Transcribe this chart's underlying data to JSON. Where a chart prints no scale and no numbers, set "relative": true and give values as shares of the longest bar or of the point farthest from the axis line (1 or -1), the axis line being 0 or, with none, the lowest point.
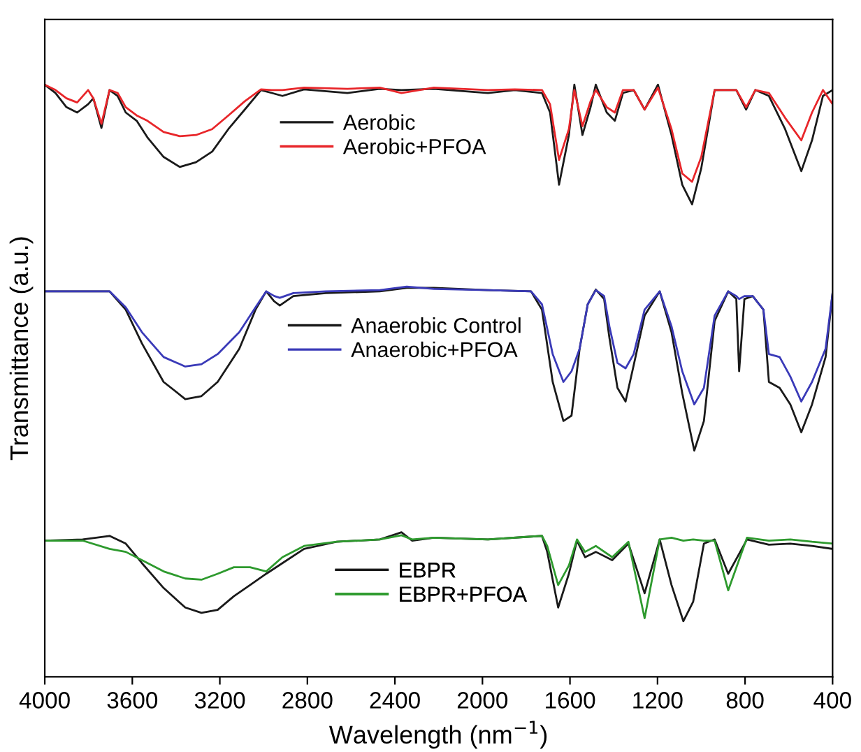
{
  "chart_data": {
    "type": "line",
    "relative": true,
    "xlabel": "Wavelength (nm$^{−1}$)",
    "ylabel": "Transmittance (a.u.)",
    "xlim": [
      4000,
      400
    ],
    "xticks": [
      4000,
      3600,
      3200,
      2800,
      2400,
      2000,
      1600,
      1200,
      800,
      400
    ],
    "tick_labels": "x",
    "grid": false,
    "legend": "center",
    "line_style": "solid",
    "marker": "none",
    "series": [
      {
        "name": "Aerobic",
        "color": "#1a1a1a",
        "x": [
          4000,
          3951,
          3901,
          3852,
          3802,
          3778,
          3741,
          3704,
          3667,
          3630,
          3580,
          3531,
          3457,
          3383,
          3309,
          3235,
          3161,
          3086,
          3012,
          2963,
          2914,
          2815,
          2617,
          2469,
          2370,
          2222,
          1975,
          1852,
          1728,
          1691,
          1650,
          1605,
          1580,
          1543,
          1506,
          1482,
          1432,
          1395,
          1358,
          1309,
          1259,
          1198,
          1136,
          1087,
          1042,
          1000,
          939,
          840,
          795,
          753,
          691,
          617,
          543,
          494,
          444,
          400
        ],
        "values": [
          1.0,
          0.986,
          0.962,
          0.953,
          0.967,
          0.977,
          0.927,
          0.991,
          0.981,
          0.953,
          0.939,
          0.911,
          0.878,
          0.861,
          0.869,
          0.887,
          0.925,
          0.958,
          0.991,
          0.986,
          0.981,
          0.992,
          0.986,
          0.993,
          0.991,
          0.993,
          0.986,
          0.991,
          0.986,
          0.953,
          0.831,
          0.915,
          1.0,
          0.915,
          0.962,
          1.0,
          0.953,
          0.939,
          0.986,
          0.991,
          0.958,
          1.0,
          0.915,
          0.831,
          0.798,
          0.859,
          0.991,
          0.991,
          0.958,
          0.991,
          0.981,
          0.925,
          0.854,
          0.906,
          0.981,
          0.991
        ]
      },
      {
        "name": "Aerobic+PFOA",
        "color": "#e8262a",
        "x": [
          4000,
          3951,
          3901,
          3852,
          3802,
          3778,
          3741,
          3704,
          3667,
          3630,
          3580,
          3531,
          3457,
          3383,
          3309,
          3235,
          3161,
          3086,
          3012,
          2963,
          2914,
          2815,
          2617,
          2469,
          2370,
          2222,
          1975,
          1852,
          1728,
          1691,
          1650,
          1605,
          1580,
          1543,
          1506,
          1482,
          1432,
          1395,
          1358,
          1309,
          1259,
          1198,
          1136,
          1087,
          1042,
          1000,
          939,
          840,
          795,
          753,
          691,
          617,
          543,
          494,
          444,
          400
        ],
        "values": [
          1.0,
          0.991,
          0.977,
          0.97,
          0.991,
          0.977,
          0.934,
          0.991,
          0.986,
          0.962,
          0.948,
          0.939,
          0.92,
          0.913,
          0.915,
          0.925,
          0.948,
          0.972,
          0.992,
          0.991,
          0.991,
          0.995,
          0.993,
          0.995,
          0.986,
          0.995,
          0.991,
          0.992,
          0.991,
          0.967,
          0.873,
          0.925,
          0.991,
          0.93,
          0.972,
          0.991,
          0.962,
          0.953,
          0.991,
          0.991,
          0.958,
          0.995,
          0.925,
          0.85,
          0.836,
          0.878,
          0.991,
          0.991,
          0.962,
          0.991,
          0.986,
          0.944,
          0.906,
          0.953,
          0.991,
          0.967
        ]
      },
      {
        "name": "Anaerobic Control",
        "color": "#1a1a1a",
        "x": [
          4000,
          3704,
          3630,
          3556,
          3457,
          3358,
          3284,
          3210,
          3111,
          3037,
          2988,
          2951,
          2926,
          2864,
          2716,
          2469,
          2346,
          2222,
          1975,
          1778,
          1728,
          1679,
          1630,
          1593,
          1556,
          1519,
          1482,
          1444,
          1420,
          1383,
          1346,
          1309,
          1259,
          1190,
          1136,
          1087,
          1032,
          988,
          939,
          877,
          840,
          827,
          803,
          765,
          716,
          691,
          642,
          593,
          543,
          494,
          432,
          400
        ],
        "values": [
          0.651,
          0.651,
          0.62,
          0.563,
          0.498,
          0.469,
          0.474,
          0.498,
          0.554,
          0.62,
          0.651,
          0.634,
          0.627,
          0.643,
          0.648,
          0.651,
          0.657,
          0.657,
          0.653,
          0.651,
          0.62,
          0.498,
          0.432,
          0.441,
          0.554,
          0.629,
          0.654,
          0.638,
          0.573,
          0.488,
          0.465,
          0.526,
          0.61,
          0.651,
          0.582,
          0.479,
          0.382,
          0.432,
          0.601,
          0.651,
          0.638,
          0.516,
          0.638,
          0.643,
          0.62,
          0.498,
          0.488,
          0.46,
          0.413,
          0.46,
          0.54,
          0.648
        ]
      },
      {
        "name": "Anaerobic+PFOA",
        "color": "#3a3ab8",
        "x": [
          4000,
          3704,
          3630,
          3556,
          3457,
          3358,
          3284,
          3210,
          3111,
          3037,
          2988,
          2951,
          2926,
          2864,
          2716,
          2469,
          2346,
          2222,
          1975,
          1778,
          1728,
          1679,
          1630,
          1593,
          1556,
          1519,
          1482,
          1444,
          1420,
          1383,
          1346,
          1309,
          1259,
          1190,
          1136,
          1087,
          1032,
          988,
          939,
          877,
          840,
          827,
          803,
          765,
          716,
          691,
          642,
          593,
          543,
          494,
          432,
          400
        ],
        "values": [
          0.651,
          0.651,
          0.624,
          0.582,
          0.54,
          0.524,
          0.528,
          0.545,
          0.582,
          0.624,
          0.651,
          0.643,
          0.64,
          0.648,
          0.651,
          0.653,
          0.659,
          0.655,
          0.653,
          0.651,
          0.629,
          0.545,
          0.498,
          0.516,
          0.554,
          0.629,
          0.653,
          0.643,
          0.592,
          0.53,
          0.521,
          0.545,
          0.62,
          0.651,
          0.592,
          0.516,
          0.46,
          0.488,
          0.61,
          0.651,
          0.643,
          0.638,
          0.643,
          0.643,
          0.62,
          0.545,
          0.54,
          0.507,
          0.465,
          0.498,
          0.554,
          0.648
        ]
      },
      {
        "name": "EBPR",
        "color": "#1a1a1a",
        "x": [
          4000,
          3827,
          3704,
          3630,
          3556,
          3457,
          3358,
          3284,
          3210,
          3136,
          3062,
          2988,
          2914,
          2815,
          2667,
          2469,
          2370,
          2321,
          2222,
          1975,
          1728,
          1704,
          1654,
          1605,
          1568,
          1531,
          1482,
          1407,
          1333,
          1259,
          1190,
          1136,
          1082,
          1037,
          988,
          939,
          877,
          791,
          691,
          593,
          494,
          400
        ],
        "values": [
          0.23,
          0.232,
          0.238,
          0.225,
          0.192,
          0.15,
          0.117,
          0.108,
          0.113,
          0.136,
          0.155,
          0.174,
          0.192,
          0.216,
          0.228,
          0.232,
          0.244,
          0.23,
          0.235,
          0.232,
          0.238,
          0.211,
          0.117,
          0.174,
          0.23,
          0.202,
          0.211,
          0.197,
          0.225,
          0.141,
          0.232,
          0.155,
          0.094,
          0.127,
          0.225,
          0.232,
          0.174,
          0.232,
          0.223,
          0.225,
          0.221,
          0.216
        ]
      },
      {
        "name": "EBPR+PFOA",
        "color": "#2e9a2e",
        "x": [
          4000,
          3827,
          3704,
          3630,
          3556,
          3457,
          3358,
          3284,
          3210,
          3136,
          3062,
          2988,
          2914,
          2815,
          2667,
          2469,
          2370,
          2321,
          2222,
          1975,
          1728,
          1704,
          1654,
          1605,
          1568,
          1531,
          1482,
          1407,
          1333,
          1259,
          1190,
          1136,
          1082,
          1037,
          988,
          939,
          877,
          791,
          691,
          593,
          494,
          400
        ],
        "values": [
          0.23,
          0.23,
          0.216,
          0.211,
          0.197,
          0.178,
          0.166,
          0.164,
          0.174,
          0.185,
          0.185,
          0.178,
          0.202,
          0.221,
          0.228,
          0.232,
          0.239,
          0.232,
          0.235,
          0.232,
          0.238,
          0.221,
          0.155,
          0.188,
          0.232,
          0.211,
          0.221,
          0.202,
          0.228,
          0.099,
          0.232,
          0.235,
          0.23,
          0.232,
          0.23,
          0.23,
          0.146,
          0.235,
          0.23,
          0.232,
          0.228,
          0.225
        ]
      }
    ]
  }
}
